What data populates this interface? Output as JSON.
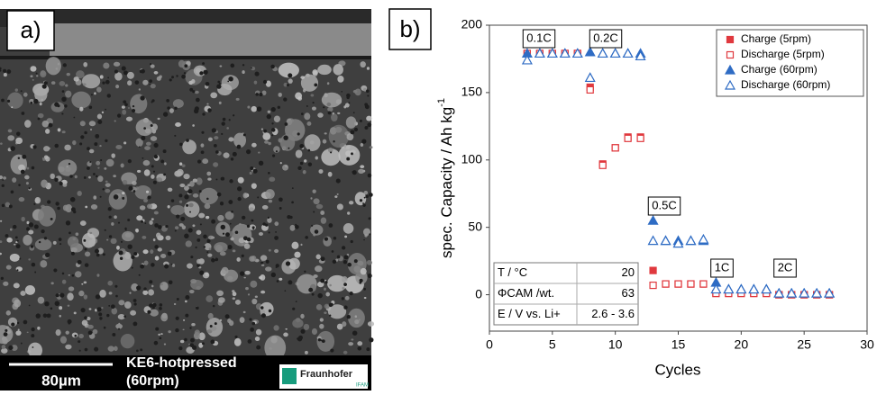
{
  "panel_a": {
    "label": "a)",
    "scale_bar": "80µm",
    "caption_lines": [
      "KE6-hotpressed",
      "(60rpm)"
    ],
    "logo": "Fraunhofer",
    "logo_sub": "IFAM"
  },
  "chart_data": {
    "type": "scatter",
    "panel_label": "b)",
    "xlabel": "Cycles",
    "ylabel": "spec. Capacity / Ah kg",
    "ylabel_superscript": "-1",
    "xlim": [
      0,
      30
    ],
    "xticks": [
      0,
      5,
      10,
      15,
      20,
      25,
      30
    ],
    "ylim": [
      -27,
      200
    ],
    "yticks": [
      0,
      50,
      100,
      150,
      200
    ],
    "legend": "upper right",
    "x": [
      3,
      4,
      5,
      6,
      7,
      8,
      9,
      10,
      11,
      12,
      13,
      14,
      15,
      16,
      17,
      18,
      19,
      20,
      21,
      22,
      23,
      24,
      25,
      26,
      27
    ],
    "series": [
      {
        "name": "Charge (5rpm)",
        "color": "#e0393e",
        "marker": "square",
        "filled": true,
        "values": [
          179,
          179,
          179,
          179,
          179,
          154,
          97,
          109,
          117,
          117,
          18,
          8,
          8,
          8,
          8,
          1,
          1,
          1,
          1,
          1,
          0,
          0,
          0,
          0,
          0
        ]
      },
      {
        "name": "Discharge (5rpm)",
        "color": "#e0393e",
        "marker": "square",
        "filled": false,
        "values": [
          179,
          179,
          179,
          179,
          179,
          152,
          96,
          109,
          116,
          116,
          7,
          8,
          8,
          8,
          8,
          1,
          1,
          1,
          1,
          1,
          0,
          0,
          0,
          0,
          0
        ]
      },
      {
        "name": "Charge (60rpm)",
        "color": "#2f6cc4",
        "marker": "triangle",
        "filled": true,
        "values": [
          179,
          179,
          179,
          179,
          179,
          180,
          179,
          179,
          179,
          179,
          55,
          40,
          40,
          40,
          40,
          9,
          4,
          4,
          4,
          4,
          1,
          1,
          1,
          1,
          1
        ]
      },
      {
        "name": "Discharge (60rpm)",
        "color": "#2f6cc4",
        "marker": "triangle",
        "filled": false,
        "values": [
          174,
          179,
          179,
          179,
          179,
          161,
          179,
          179,
          179,
          177,
          40,
          40,
          38,
          40,
          41,
          4,
          4,
          4,
          4,
          4,
          1,
          1,
          1,
          1,
          1
        ]
      }
    ],
    "rate_labels": [
      "0.1C",
      "0.2C",
      "0.5C",
      "1C",
      "2C"
    ],
    "table": {
      "rows": [
        [
          "T / °C",
          "20"
        ],
        [
          "ΦCAM /wt.",
          "63"
        ],
        [
          "E / V vs. Li+",
          "2.6 - 3.6"
        ]
      ]
    }
  }
}
